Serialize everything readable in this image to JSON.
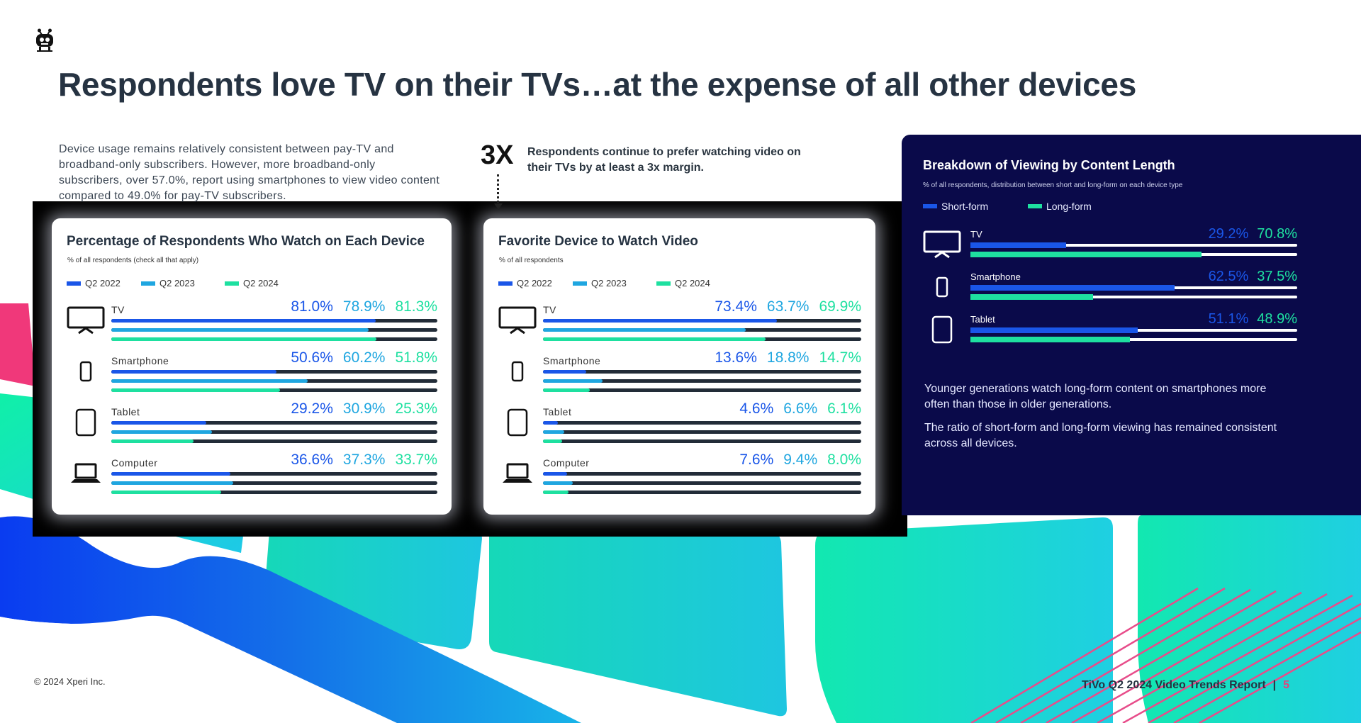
{
  "colors": {
    "q2022": "#1a56e8",
    "q2023": "#1fa6e0",
    "q2024": "#1ee0a0",
    "short": "#1a56e8",
    "long": "#1ee0a0",
    "panel": "#0a0a4a"
  },
  "header": {
    "title": "Respondents love TV on their TVs…at the expense of all other devices"
  },
  "intro": {
    "text": "Device usage remains relatively consistent between pay-TV and broadband-only subscribers. However, more broadband-only subscribers, over 57.0%, report using smartphones to view video content compared to 49.0% for pay-TV subscribers."
  },
  "callout": {
    "big": "3X",
    "text": "Respondents continue to prefer watching video on their TVs by at least a 3x margin."
  },
  "chart_data": [
    {
      "type": "bar",
      "title": "Percentage of Respondents Who Watch on Each Device",
      "subtitle": "% of all respondents (check all that apply)",
      "categories": [
        "TV",
        "Smartphone",
        "Tablet",
        "Computer"
      ],
      "icons": [
        "tv-icon",
        "smartphone-icon",
        "tablet-icon",
        "computer-icon"
      ],
      "series": [
        {
          "name": "Q2 2022",
          "values": [
            81.0,
            50.6,
            29.2,
            36.6
          ],
          "labels": [
            "81.0%",
            "50.6%",
            "29.2%",
            "36.6%"
          ]
        },
        {
          "name": "Q2 2023",
          "values": [
            78.9,
            60.2,
            30.9,
            37.3
          ],
          "labels": [
            "78.9%",
            "60.2%",
            "30.9%",
            "37.3%"
          ]
        },
        {
          "name": "Q2 2024",
          "values": [
            81.3,
            51.8,
            25.3,
            33.7
          ],
          "labels": [
            "81.3%",
            "51.8%",
            "25.3%",
            "33.7%"
          ]
        }
      ],
      "xlim": [
        0,
        100
      ]
    },
    {
      "type": "bar",
      "title": "Favorite Device to Watch Video",
      "subtitle": "% of all respondents",
      "categories": [
        "TV",
        "Smartphone",
        "Tablet",
        "Computer"
      ],
      "icons": [
        "tv-icon",
        "smartphone-icon",
        "tablet-icon",
        "computer-icon"
      ],
      "series": [
        {
          "name": "Q2 2022",
          "values": [
            73.4,
            13.6,
            4.6,
            7.6
          ],
          "labels": [
            "73.4%",
            "13.6%",
            "4.6%",
            "7.6%"
          ]
        },
        {
          "name": "Q2 2023",
          "values": [
            63.7,
            18.8,
            6.6,
            9.4
          ],
          "labels": [
            "63.7%",
            "18.8%",
            "6.6%",
            "9.4%"
          ]
        },
        {
          "name": "Q2 2024",
          "values": [
            69.9,
            14.7,
            6.1,
            8.0
          ],
          "labels": [
            "69.9%",
            "14.7%",
            "6.1%",
            "8.0%"
          ]
        }
      ],
      "xlim": [
        0,
        100
      ]
    },
    {
      "type": "bar",
      "title": "Breakdown of Viewing by Content Length",
      "subtitle": "% of all respondents, distribution between short and long-form on each device type",
      "categories": [
        "TV",
        "Smartphone",
        "Tablet"
      ],
      "icons": [
        "tv-icon",
        "smartphone-icon",
        "tablet-icon"
      ],
      "series": [
        {
          "name": "Short-form",
          "values": [
            29.2,
            62.5,
            51.1
          ],
          "labels": [
            "29.2%",
            "62.5%",
            "51.1%"
          ]
        },
        {
          "name": "Long-form",
          "values": [
            70.8,
            37.5,
            48.9
          ],
          "labels": [
            "70.8%",
            "37.5%",
            "48.9%"
          ]
        }
      ],
      "xlim": [
        0,
        100
      ]
    }
  ],
  "panel": {
    "notes": [
      "Younger generations watch long-form content on smartphones more often than those in older generations.",
      "The ratio of short-form and long-form viewing has remained consistent across all devices."
    ]
  },
  "footer": {
    "copyright": "© 2024 Xperi Inc.",
    "report": "TiVo Q2 2024 Video Trends Report",
    "separator": "|",
    "page": "5"
  }
}
